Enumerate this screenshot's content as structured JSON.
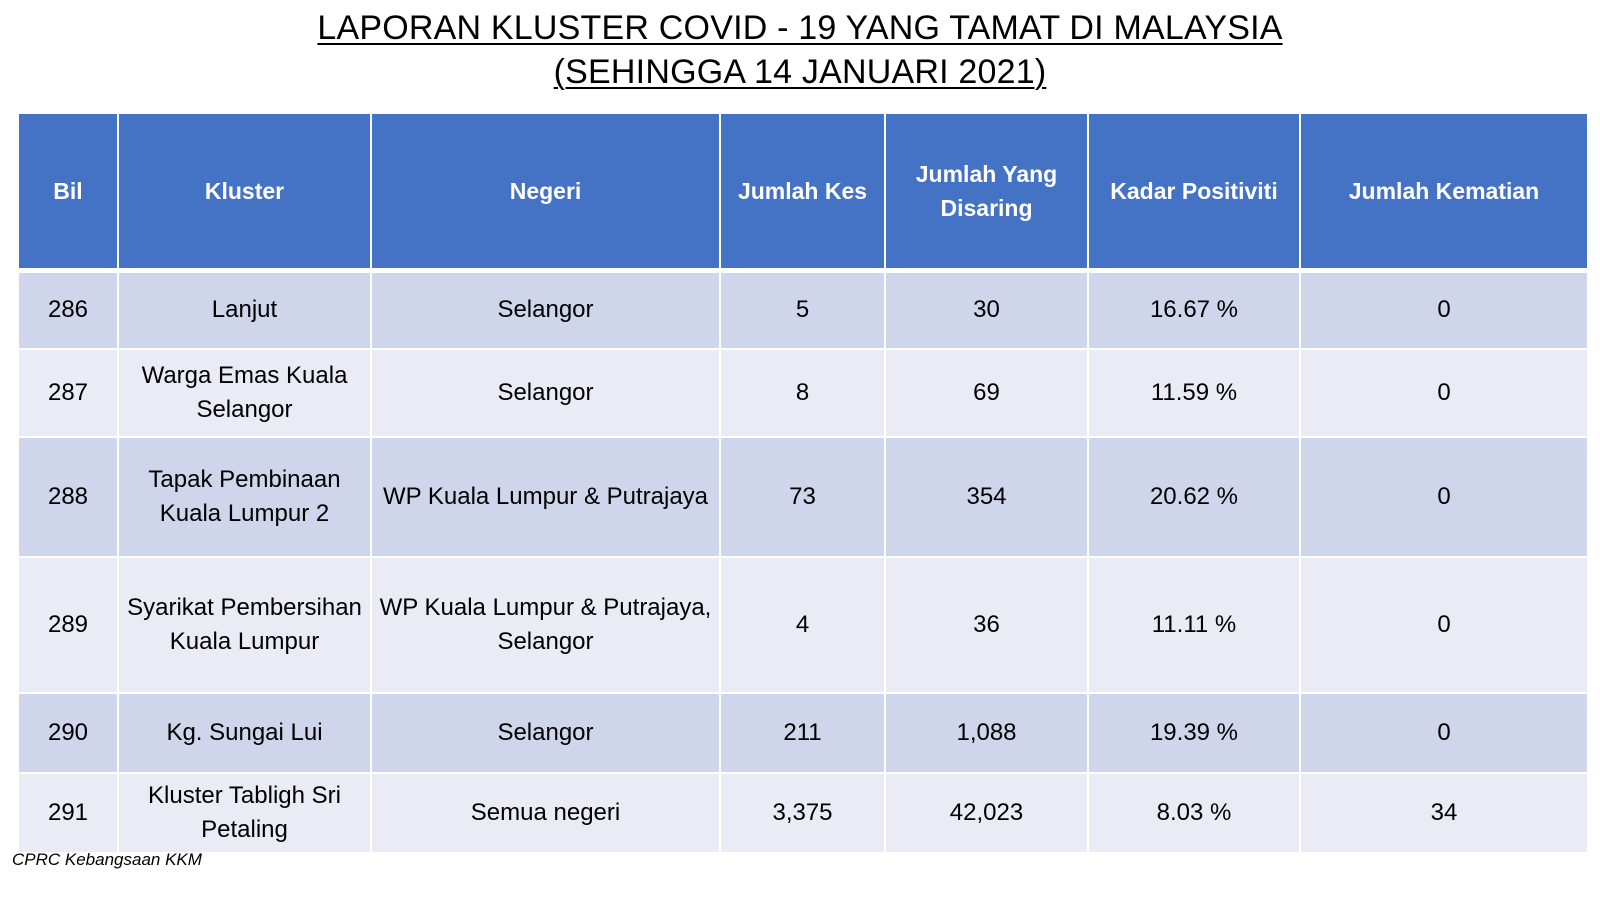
{
  "title": {
    "line1": "LAPORAN KLUSTER COVID - 19 YANG TAMAT DI MALAYSIA",
    "line2": "(SEHINGGA 14 JANUARI 2021)"
  },
  "table": {
    "headers": [
      "Bil",
      "Kluster",
      "Negeri",
      "Jumlah Kes",
      "Jumlah Yang Disaring",
      "Kadar Positiviti",
      "Jumlah Kematian"
    ],
    "rows": [
      [
        "286",
        "Lanjut",
        "Selangor",
        "5",
        "30",
        "16.67 %",
        "0"
      ],
      [
        "287",
        "Warga Emas Kuala Selangor",
        "Selangor",
        "8",
        "69",
        "11.59 %",
        "0"
      ],
      [
        "288",
        "Tapak Pembinaan Kuala Lumpur 2",
        "WP Kuala Lumpur & Putrajaya",
        "73",
        "354",
        "20.62 %",
        "0"
      ],
      [
        "289",
        "Syarikat Pembersihan Kuala Lumpur",
        "WP Kuala Lumpur & Putrajaya, Selangor",
        "4",
        "36",
        "11.11 %",
        "0"
      ],
      [
        "290",
        "Kg. Sungai Lui",
        "Selangor",
        "211",
        "1,088",
        "19.39 %",
        "0"
      ],
      [
        "291",
        "Kluster Tabligh Sri Petaling",
        "Semua negeri",
        "3,375",
        "42,023",
        "8.03 %",
        "34"
      ]
    ]
  },
  "source": "CPRC Kebangsaan KKM",
  "colors": {
    "header_bg": "#4472c4",
    "row_dark": "#cfd5ea",
    "row_light": "#e9ebf5"
  }
}
